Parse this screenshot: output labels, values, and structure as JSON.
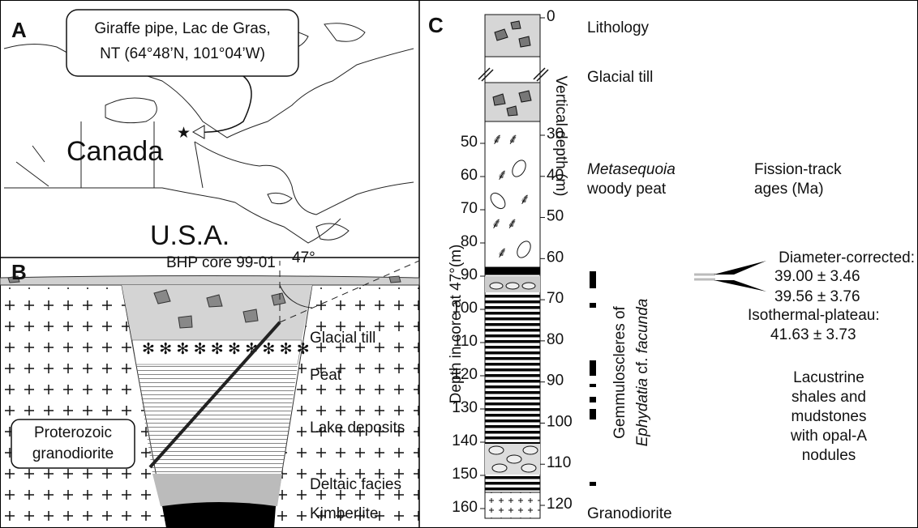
{
  "panel_a": {
    "label": "A",
    "callout": [
      "Giraffe pipe, Lac de Gras,",
      "NT (64°48’N, 101°04’W)"
    ],
    "country_labels": [
      "Canada",
      "U.S.A."
    ]
  },
  "panel_b": {
    "label": "B",
    "core_label": "BHP core 99-01",
    "angle": "47°",
    "layers": [
      "Glacial till",
      "Peat",
      "Lake deposits",
      "Deltaic facies",
      "Kimberlite"
    ],
    "country_rock": [
      "Proterozoic",
      "granodiorite"
    ]
  },
  "panel_c": {
    "label": "C",
    "core_depth_axis": "Depth in core at 47°(m)",
    "core_depth_ticks": [
      50,
      60,
      70,
      80,
      90,
      100,
      110,
      120,
      130,
      140,
      150,
      160
    ],
    "vertical_depth_axis": "Vertical depth (m)",
    "vertical_depth_ticks": [
      0,
      30,
      40,
      50,
      60,
      70,
      80,
      90,
      100,
      110,
      120
    ],
    "lithology_header": "Lithology",
    "glacial_till": "Glacial till",
    "peat": {
      "genus": "Metasequoia",
      "rest": "woody peat"
    },
    "sponge": {
      "line1": "Gemmuloscleres of",
      "genus": "Ephydatia",
      "cf": "cf.",
      "epithet": "facunda"
    },
    "fission_track": {
      "header": [
        "Fission-track",
        "ages (Ma)"
      ],
      "diameter_label": "Diameter-corrected:",
      "diameter_ages": [
        "39.00 ± 3.46",
        "39.56 ± 3.76"
      ],
      "plateau_label": "Isothermal-plateau:",
      "plateau_age": "41.63 ± 3.73"
    },
    "lacustrine": [
      "Lacustrine",
      "shales and",
      "mudstones",
      "with opal-A",
      "nodules"
    ],
    "basement": "Granodiorite"
  }
}
